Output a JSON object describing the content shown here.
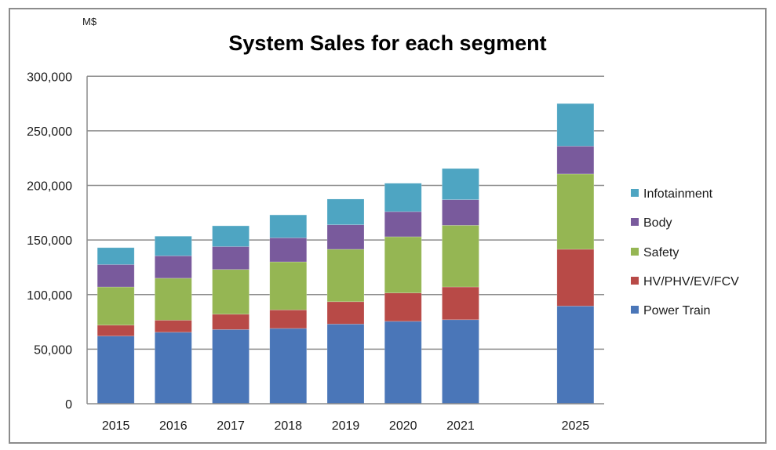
{
  "chart_data": {
    "type": "bar",
    "stacked": true,
    "title": "System Sales for each segment",
    "unit_label": "M$",
    "xlabel": "",
    "ylabel": "M$",
    "ylim": [
      0,
      300000
    ],
    "yticks": [
      0,
      50000,
      100000,
      150000,
      200000,
      250000,
      300000
    ],
    "ytick_labels": [
      "0",
      "50,000",
      "100,000",
      "150,000",
      "200,000",
      "250,000",
      "300,000"
    ],
    "grid": true,
    "legend_position": "right",
    "categories": [
      "2015",
      "2016",
      "2017",
      "2018",
      "2019",
      "2020",
      "2021",
      "",
      "2025"
    ],
    "series": [
      {
        "name": "Power Train",
        "color": "#4A76B8",
        "values": [
          62000,
          65500,
          68000,
          69000,
          73000,
          75500,
          77000,
          null,
          89500
        ]
      },
      {
        "name": "HV/PHV/EV/FCV",
        "color": "#B84A47",
        "values": [
          10000,
          11000,
          14000,
          17000,
          20500,
          26000,
          30000,
          null,
          52000
        ]
      },
      {
        "name": "Safety",
        "color": "#95B653",
        "values": [
          35000,
          38500,
          41000,
          44000,
          48000,
          51500,
          56500,
          null,
          69000
        ]
      },
      {
        "name": "Body",
        "color": "#795A9C",
        "values": [
          20500,
          20500,
          21000,
          22000,
          22500,
          23000,
          23500,
          null,
          25500
        ]
      },
      {
        "name": "Infotainment",
        "color": "#4EA5C2",
        "values": [
          15500,
          18000,
          19000,
          21000,
          23500,
          26000,
          28500,
          null,
          39000
        ]
      }
    ],
    "legend_order": [
      "Infotainment",
      "Body",
      "Safety",
      "HV/PHV/EV/FCV",
      "Power Train"
    ]
  }
}
